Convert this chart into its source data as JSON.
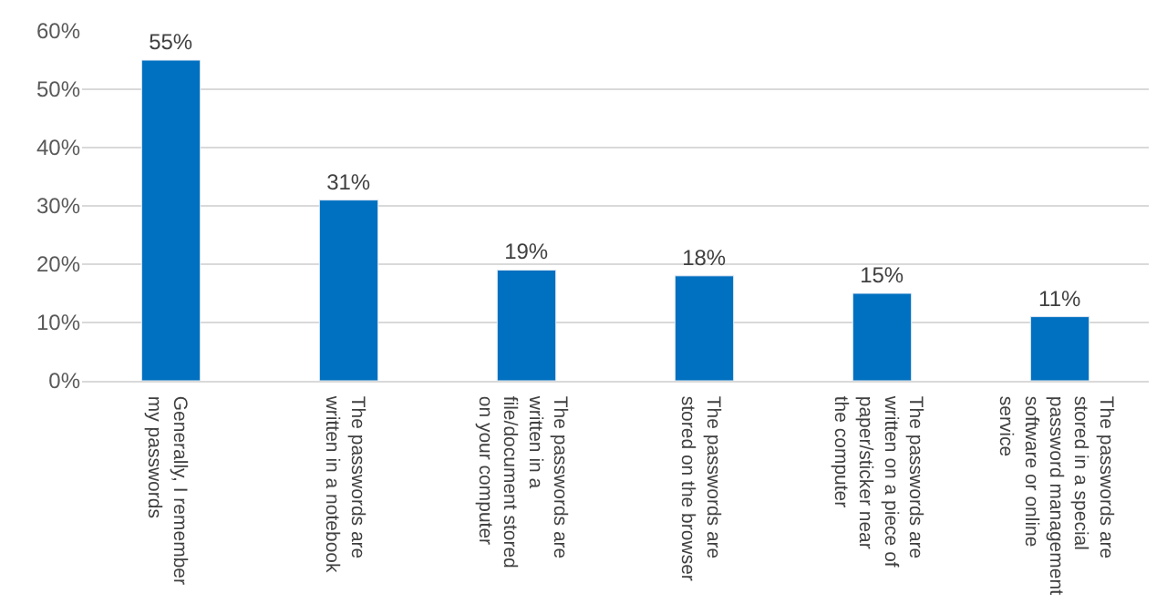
{
  "chart_data": {
    "type": "bar",
    "categories": [
      "Generally, I remember my passwords",
      "The passwords are written in a notebook",
      "The passwords are written in a file/document stored on your computer",
      "The passwords are stored on the browser",
      "The passwords are written on a piece of paper/sticker near the computer",
      "The passwords are stored in a special password management software or online service"
    ],
    "values": [
      55,
      31,
      19,
      18,
      15,
      11
    ],
    "value_labels": [
      "55%",
      "31%",
      "19%",
      "18%",
      "15%",
      "11%"
    ],
    "color": "#0070c0",
    "ylim": [
      0,
      60
    ],
    "yticks": [
      {
        "value": 0,
        "label": "0%"
      },
      {
        "value": 10,
        "label": "10%"
      },
      {
        "value": 20,
        "label": "20%"
      },
      {
        "value": 30,
        "label": "30%"
      },
      {
        "value": 40,
        "label": "40%"
      },
      {
        "value": 50,
        "label": "50%"
      },
      {
        "value": 60,
        "label": "60%"
      }
    ],
    "grid": "y",
    "legend": false
  }
}
